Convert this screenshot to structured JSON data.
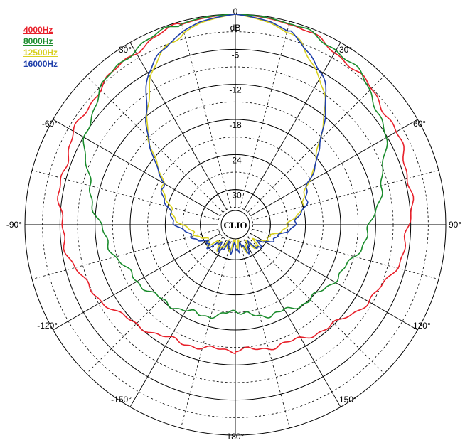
{
  "chart_data": {
    "type": "polar",
    "unit_label": "dB",
    "radial_ticks": [
      "0",
      "-6",
      "-12",
      "-18",
      "-24",
      "-30"
    ],
    "radial_range": [
      -36,
      0
    ],
    "angle_labels": [
      {
        "angle": 0,
        "text": "0"
      },
      {
        "angle": 30,
        "text": "30°"
      },
      {
        "angle": 60,
        "text": "60°"
      },
      {
        "angle": 90,
        "text": "90°"
      },
      {
        "angle": 120,
        "text": "120°"
      },
      {
        "angle": 150,
        "text": "150°"
      },
      {
        "angle": 180,
        "text": "180°"
      },
      {
        "angle": -150,
        "text": "-150°"
      },
      {
        "angle": -120,
        "text": "-120°"
      },
      {
        "angle": -90,
        "text": "-90°"
      },
      {
        "angle": -60,
        "text": "-60°"
      },
      {
        "angle": -30,
        "text": "-30°"
      }
    ],
    "grid": true,
    "legend_position": "top-left",
    "logo_text": "CLIO",
    "series": [
      {
        "name": "4000Hz",
        "color": "#e8202a",
        "angles": [
          0,
          10,
          20,
          30,
          40,
          50,
          60,
          70,
          80,
          90,
          100,
          110,
          120,
          130,
          140,
          150,
          160,
          170,
          180
        ],
        "values": [
          0,
          -0.3,
          -0.8,
          -1.8,
          -2.8,
          -3.6,
          -4.3,
          -5.0,
          -5.6,
          -6.2,
          -7.0,
          -8.3,
          -9.8,
          -11.3,
          -12.6,
          -13.5,
          -14.1,
          -14.4,
          -14.5
        ]
      },
      {
        "name": "8000Hz",
        "color": "#1a8c2c",
        "angles": [
          0,
          10,
          20,
          30,
          40,
          50,
          60,
          70,
          80,
          90,
          100,
          110,
          120,
          130,
          140,
          150,
          160,
          170,
          180
        ],
        "values": [
          0,
          -0.2,
          -0.7,
          -1.4,
          -2.6,
          -4.4,
          -6.5,
          -9.0,
          -11.2,
          -12.8,
          -14.2,
          -15.6,
          -16.7,
          -17.6,
          -18.3,
          -19.0,
          -19.6,
          -20.2,
          -21.3
        ]
      },
      {
        "name": "12500Hz",
        "color": "#d8d020",
        "angles": [
          0,
          10,
          20,
          30,
          40,
          50,
          60,
          70,
          80,
          90,
          100,
          110,
          120,
          130,
          140,
          150,
          160,
          170,
          180
        ],
        "values": [
          0,
          -1.0,
          -3.0,
          -7.0,
          -12.5,
          -18.0,
          -21.8,
          -23.5,
          -25.0,
          -27.0,
          -28.6,
          -29.8,
          -30.6,
          -31.2,
          -31.5,
          -31.8,
          -32.0,
          -32.3,
          -32.8
        ]
      },
      {
        "name": "16000Hz",
        "color": "#1f3faa",
        "angles": [
          0,
          10,
          20,
          30,
          40,
          50,
          60,
          70,
          80,
          90,
          100,
          110,
          120,
          130,
          140,
          150,
          160,
          170,
          180
        ],
        "values": [
          0,
          -0.8,
          -2.6,
          -6.5,
          -12.0,
          -18.0,
          -21.5,
          -23.2,
          -24.5,
          -26.0,
          -27.6,
          -29.0,
          -30.0,
          -30.8,
          -31.3,
          -31.6,
          -31.8,
          -32.0,
          -32.3
        ]
      }
    ]
  }
}
